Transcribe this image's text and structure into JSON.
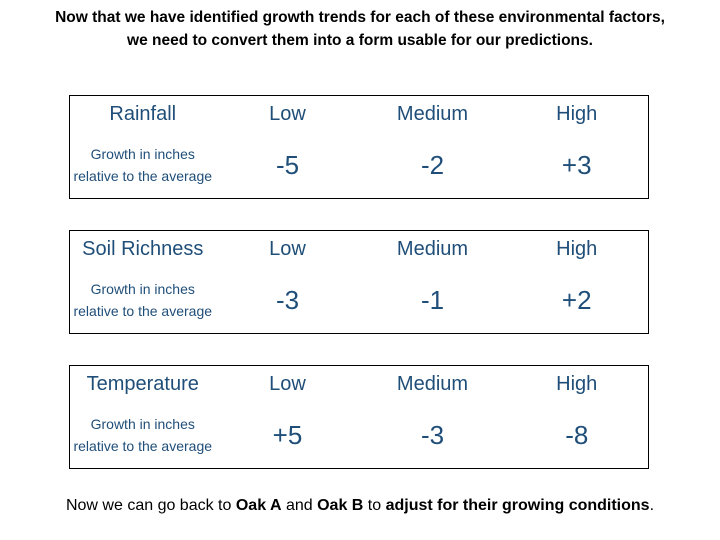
{
  "title": {
    "line1": "Now that we have identified growth trends for each of these environmental factors,",
    "line2": "we need to convert them into a form usable for our predictions."
  },
  "tables": [
    {
      "factor": "Rainfall",
      "levels": [
        "Low",
        "Medium",
        "High"
      ],
      "row_label": "Growth in inches relative to the average",
      "values": [
        "-5",
        "-2",
        "+3"
      ]
    },
    {
      "factor": "Soil Richness",
      "levels": [
        "Low",
        "Medium",
        "High"
      ],
      "row_label": "Growth in inches relative to the average",
      "values": [
        "-3",
        "-1",
        "+2"
      ]
    },
    {
      "factor": "Temperature",
      "levels": [
        "Low",
        "Medium",
        "High"
      ],
      "row_label": "Growth in inches relative to the average",
      "values": [
        "+5",
        "-3",
        "-8"
      ]
    }
  ],
  "footer": {
    "t1": "Now we can go back to ",
    "b1": "Oak A",
    "t2": " and ",
    "b2": "Oak B",
    "t3": " to ",
    "b3": "adjust for their growing conditions",
    "t4": "."
  }
}
